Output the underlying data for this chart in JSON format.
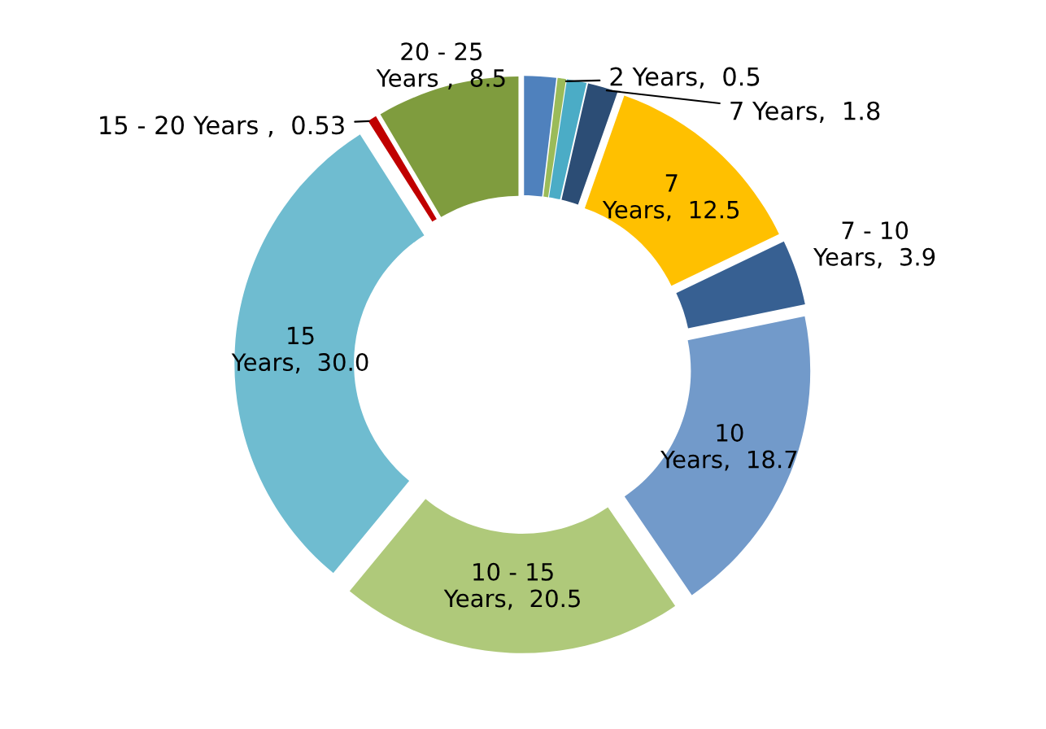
{
  "chart_data": {
    "type": "donut",
    "categories": [
      null,
      "2 Years",
      null,
      "7 Years",
      "7 Years",
      "7 - 10 Years",
      "10 Years",
      "10 - 15 Years",
      "15 Years",
      "15 - 20 Years ",
      "20 - 25 Years "
    ],
    "values": [
      1.9,
      0.5,
      1.17,
      1.8,
      12.5,
      3.9,
      18.7,
      20.5,
      30.0,
      0.53,
      8.5
    ],
    "value_labels": [
      null,
      "0.5",
      null,
      "1.8",
      "12.5",
      "3.9",
      "18.7",
      "20.5",
      "30.0",
      "0.53",
      "8.5"
    ],
    "colors": [
      "#4f81bd",
      "#9bbb59",
      "#4bacc6",
      "#2c4d75",
      "#ffc000",
      "#376092",
      "#729aca",
      "#afc97a",
      "#6fbcd0",
      "#c00000",
      "#7f9c3e"
    ],
    "legend": false
  }
}
